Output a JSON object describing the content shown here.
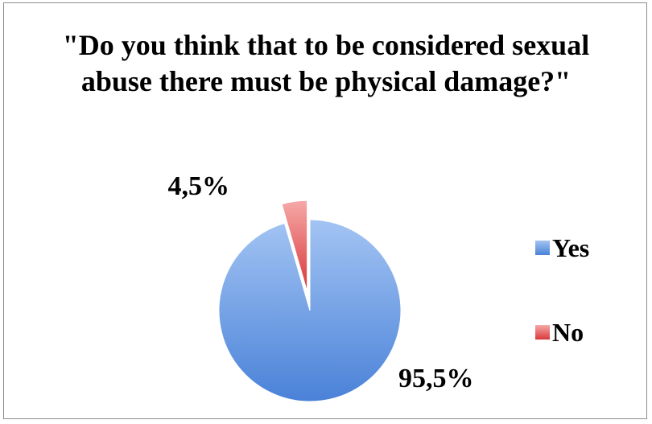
{
  "chart_data": {
    "type": "pie",
    "title": "\"Do you think that to be considered sexual abuse there must be physical damage?\"",
    "categories": [
      "Yes",
      "No"
    ],
    "values": [
      95.5,
      4.5
    ],
    "labels": [
      "95,5%",
      "4,5%"
    ],
    "colors": [
      "#7ba7e6",
      "#e86a6a"
    ],
    "exploded": [
      false,
      true
    ],
    "legend_position": "right"
  }
}
